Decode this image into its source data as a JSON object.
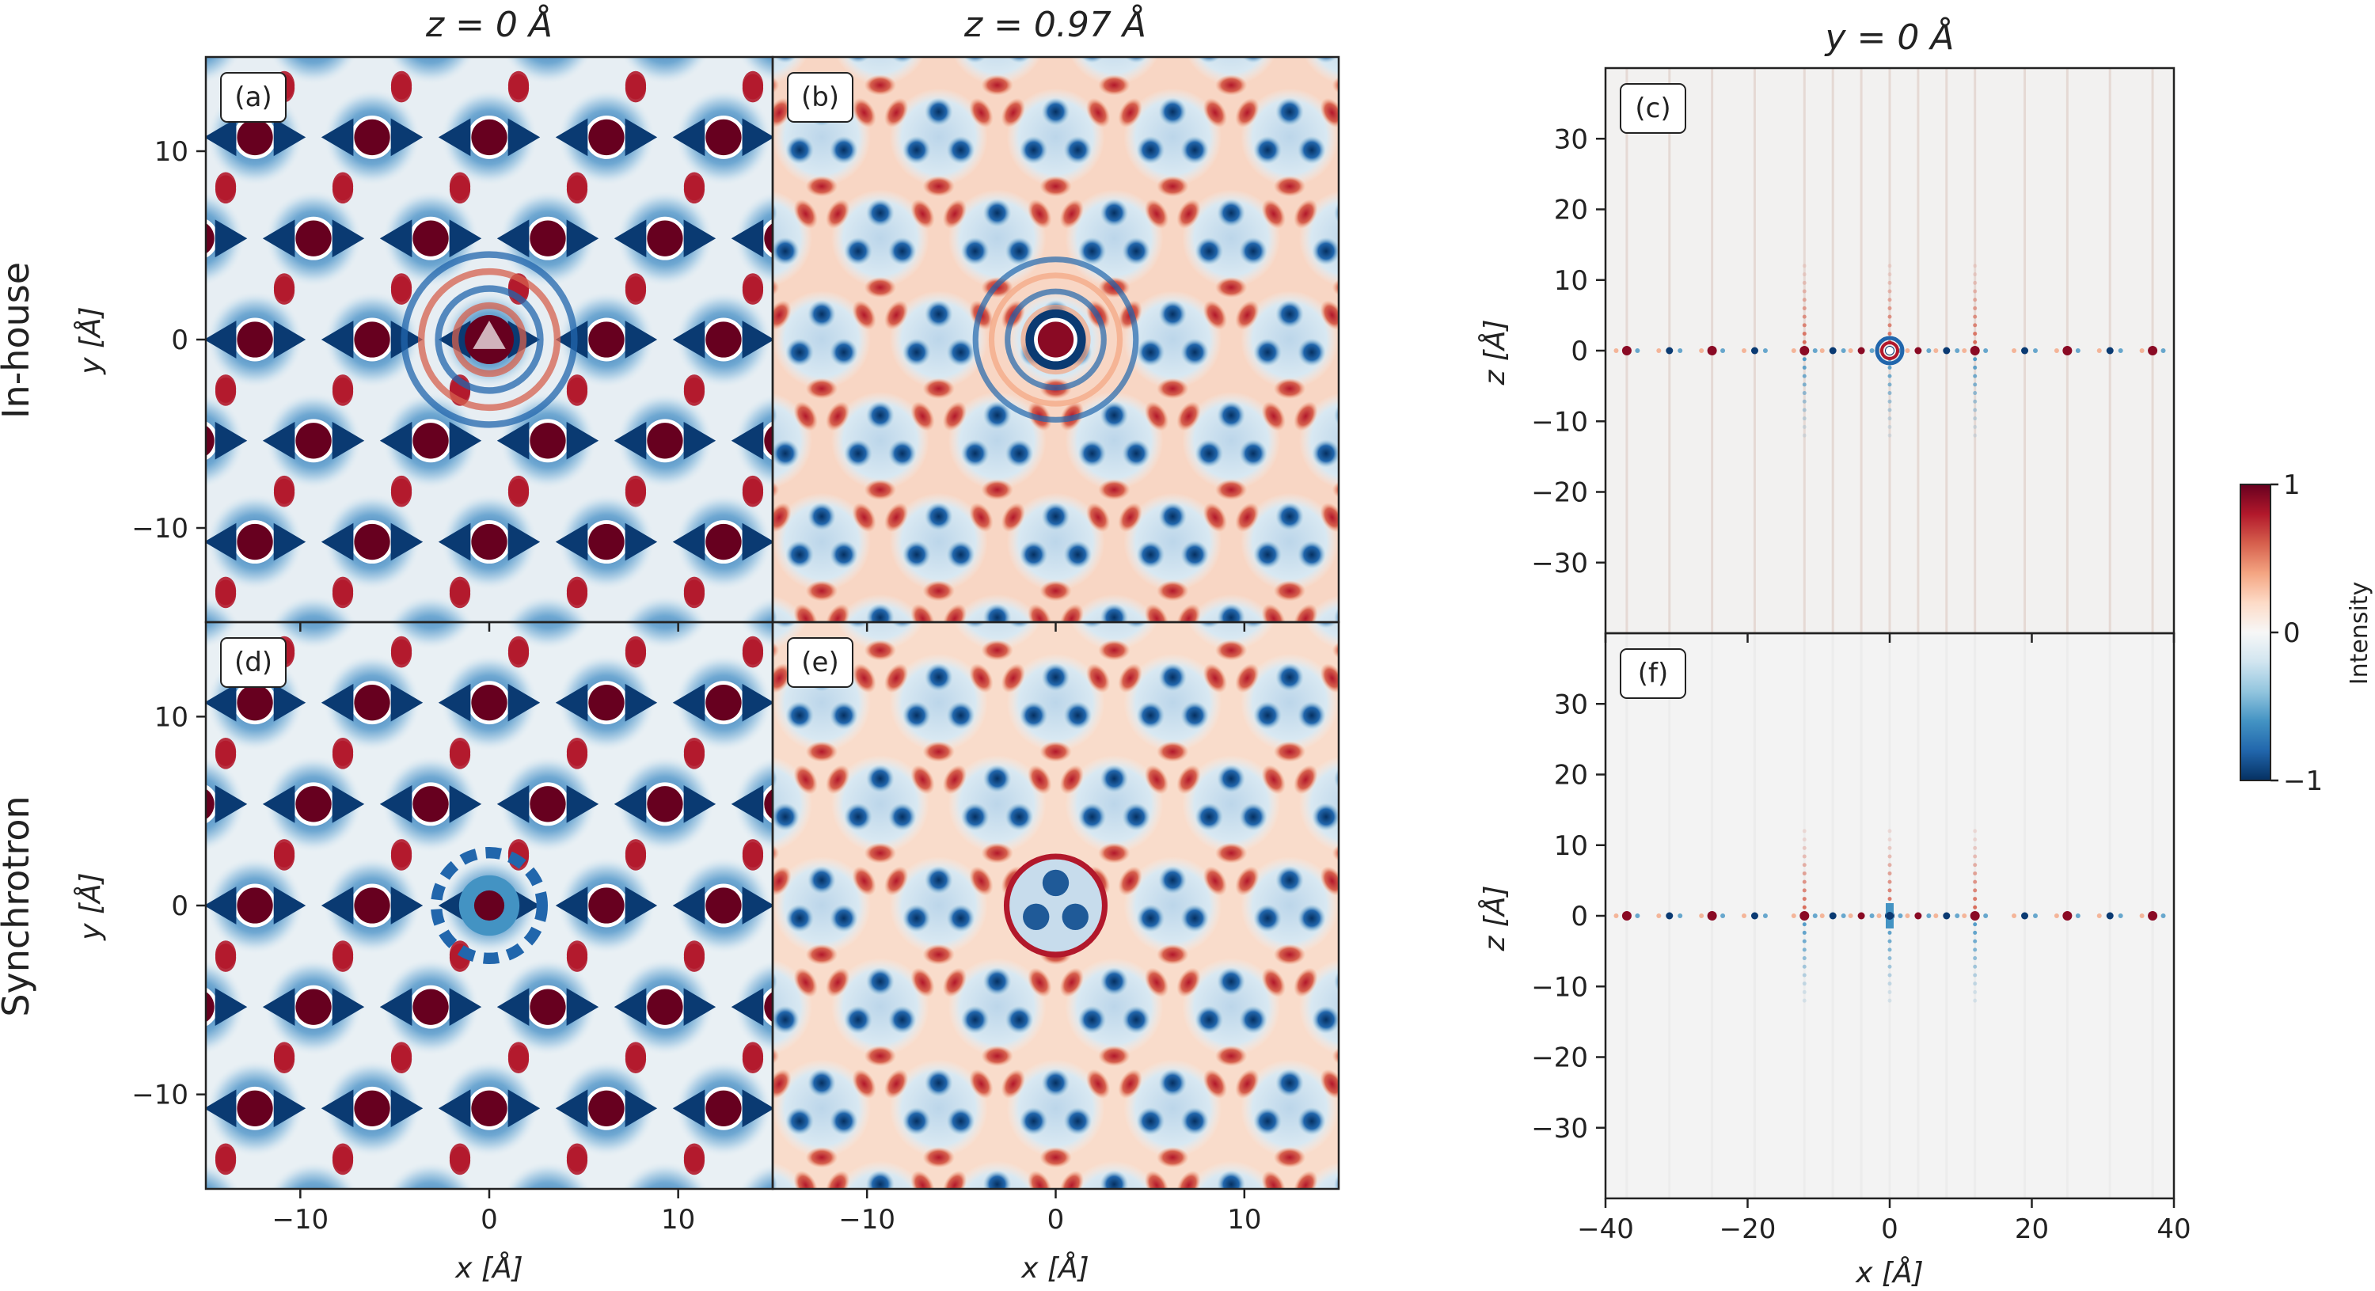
{
  "column_titles": {
    "col1": "z = 0 Å",
    "col2": "z = 0.97 Å",
    "col3": "y = 0 Å"
  },
  "row_labels": {
    "top": "In-house",
    "bottom": "Synchrotron"
  },
  "colorbar": {
    "label": "Intensity",
    "range": [
      -1,
      1
    ],
    "ticks": [
      "1",
      "0",
      "−1"
    ],
    "colormap": [
      "#053061",
      "#2166ac",
      "#4393c3",
      "#92c5de",
      "#d1e5f0",
      "#f7f7f7",
      "#fddbc7",
      "#f4a582",
      "#d6604d",
      "#b2182b",
      "#67001f"
    ]
  },
  "chart_data": [
    {
      "type": "heatmap",
      "panel": "(a)",
      "row": "In-house",
      "column": "z = 0 Å",
      "xlabel": "x [Å]",
      "ylabel": "y [Å]",
      "xlim": [
        -15,
        15
      ],
      "ylim": [
        -15,
        15
      ],
      "xticks": [],
      "yticks": [
        "10",
        "0",
        "−10"
      ],
      "lattice_period_A": 6.2
    },
    {
      "type": "heatmap",
      "panel": "(b)",
      "row": "In-house",
      "column": "z = 0.97 Å",
      "xlabel": "",
      "ylabel": "",
      "xlim": [
        -15,
        15
      ],
      "ylim": [
        -15,
        15
      ],
      "xticks": [],
      "yticks": [],
      "lattice_period_A": 6.2
    },
    {
      "type": "heatmap",
      "panel": "(c)",
      "row": "In-house",
      "column": "y = 0 Å",
      "xlabel": "",
      "ylabel": "z [Å]",
      "xlim": [
        -40,
        40
      ],
      "ylim": [
        -40,
        40
      ],
      "xticks": [],
      "yticks": [
        "30",
        "20",
        "10",
        "0",
        "−10",
        "−20",
        "−30"
      ],
      "peak_x_positions_A": [
        -37,
        -31,
        -25,
        -19,
        -12,
        -8,
        -4,
        0,
        4,
        8,
        12,
        19,
        25,
        31,
        37
      ]
    },
    {
      "type": "heatmap",
      "panel": "(d)",
      "row": "Synchrotron",
      "column": "z = 0 Å",
      "xlabel": "x [Å]",
      "ylabel": "y [Å]",
      "xlim": [
        -15,
        15
      ],
      "ylim": [
        -15,
        15
      ],
      "xticks": [
        "−10",
        "0",
        "10"
      ],
      "yticks": [
        "10",
        "0",
        "−10"
      ],
      "lattice_period_A": 6.2
    },
    {
      "type": "heatmap",
      "panel": "(e)",
      "row": "Synchrotron",
      "column": "z = 0.97 Å",
      "xlabel": "x [Å]",
      "ylabel": "",
      "xlim": [
        -15,
        15
      ],
      "ylim": [
        -15,
        15
      ],
      "xticks": [
        "−10",
        "0",
        "10"
      ],
      "yticks": [],
      "lattice_period_A": 6.2
    },
    {
      "type": "heatmap",
      "panel": "(f)",
      "row": "Synchrotron",
      "column": "y = 0 Å",
      "xlabel": "x [Å]",
      "ylabel": "z [Å]",
      "xlim": [
        -40,
        40
      ],
      "ylim": [
        -40,
        40
      ],
      "xticks": [
        "−40",
        "−20",
        "0",
        "20",
        "40"
      ],
      "yticks": [
        "30",
        "20",
        "10",
        "0",
        "−10",
        "−20",
        "−30"
      ],
      "peak_x_positions_A": [
        -37,
        -31,
        -25,
        -19,
        -12,
        -8,
        -4,
        0,
        4,
        8,
        12,
        19,
        25,
        31,
        37
      ]
    }
  ]
}
